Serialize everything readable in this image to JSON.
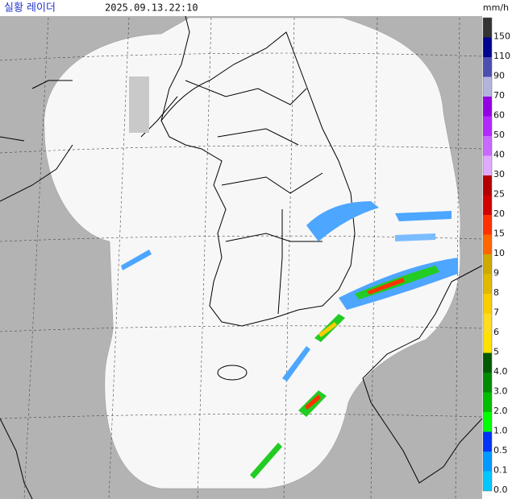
{
  "header": {
    "title": "실황 레이더",
    "timestamp": "2025.09.13.22:10"
  },
  "legend": {
    "unit": "mm/h",
    "items": [
      {
        "label": "150",
        "color": "#333333"
      },
      {
        "label": "110",
        "color": "#000390"
      },
      {
        "label": "90",
        "color": "#4c4eb1"
      },
      {
        "label": "70",
        "color": "#b3b4de"
      },
      {
        "label": "60",
        "color": "#9300e4"
      },
      {
        "label": "50",
        "color": "#b329ff"
      },
      {
        "label": "40",
        "color": "#c969ff"
      },
      {
        "label": "30",
        "color": "#e0a9ff"
      },
      {
        "label": "25",
        "color": "#b40000"
      },
      {
        "label": "20",
        "color": "#d20000"
      },
      {
        "label": "15",
        "color": "#ff3200"
      },
      {
        "label": "10",
        "color": "#ff6600"
      },
      {
        "label": "9",
        "color": "#ccaa00"
      },
      {
        "label": "8",
        "color": "#e0b900"
      },
      {
        "label": "7",
        "color": "#f9cd00"
      },
      {
        "label": "6",
        "color": "#ffdc1f"
      },
      {
        "label": "5",
        "color": "#ffe100"
      },
      {
        "label": "4.0",
        "color": "#005a00"
      },
      {
        "label": "3.0",
        "color": "#008c00"
      },
      {
        "label": "2.0",
        "color": "#00be00"
      },
      {
        "label": "1.0",
        "color": "#00ff00"
      },
      {
        "label": "0.5",
        "color": "#0033f5"
      },
      {
        "label": "0.1",
        "color": "#0099ff"
      },
      {
        "label": "0.0",
        "color": "#00c8ff"
      }
    ]
  }
}
